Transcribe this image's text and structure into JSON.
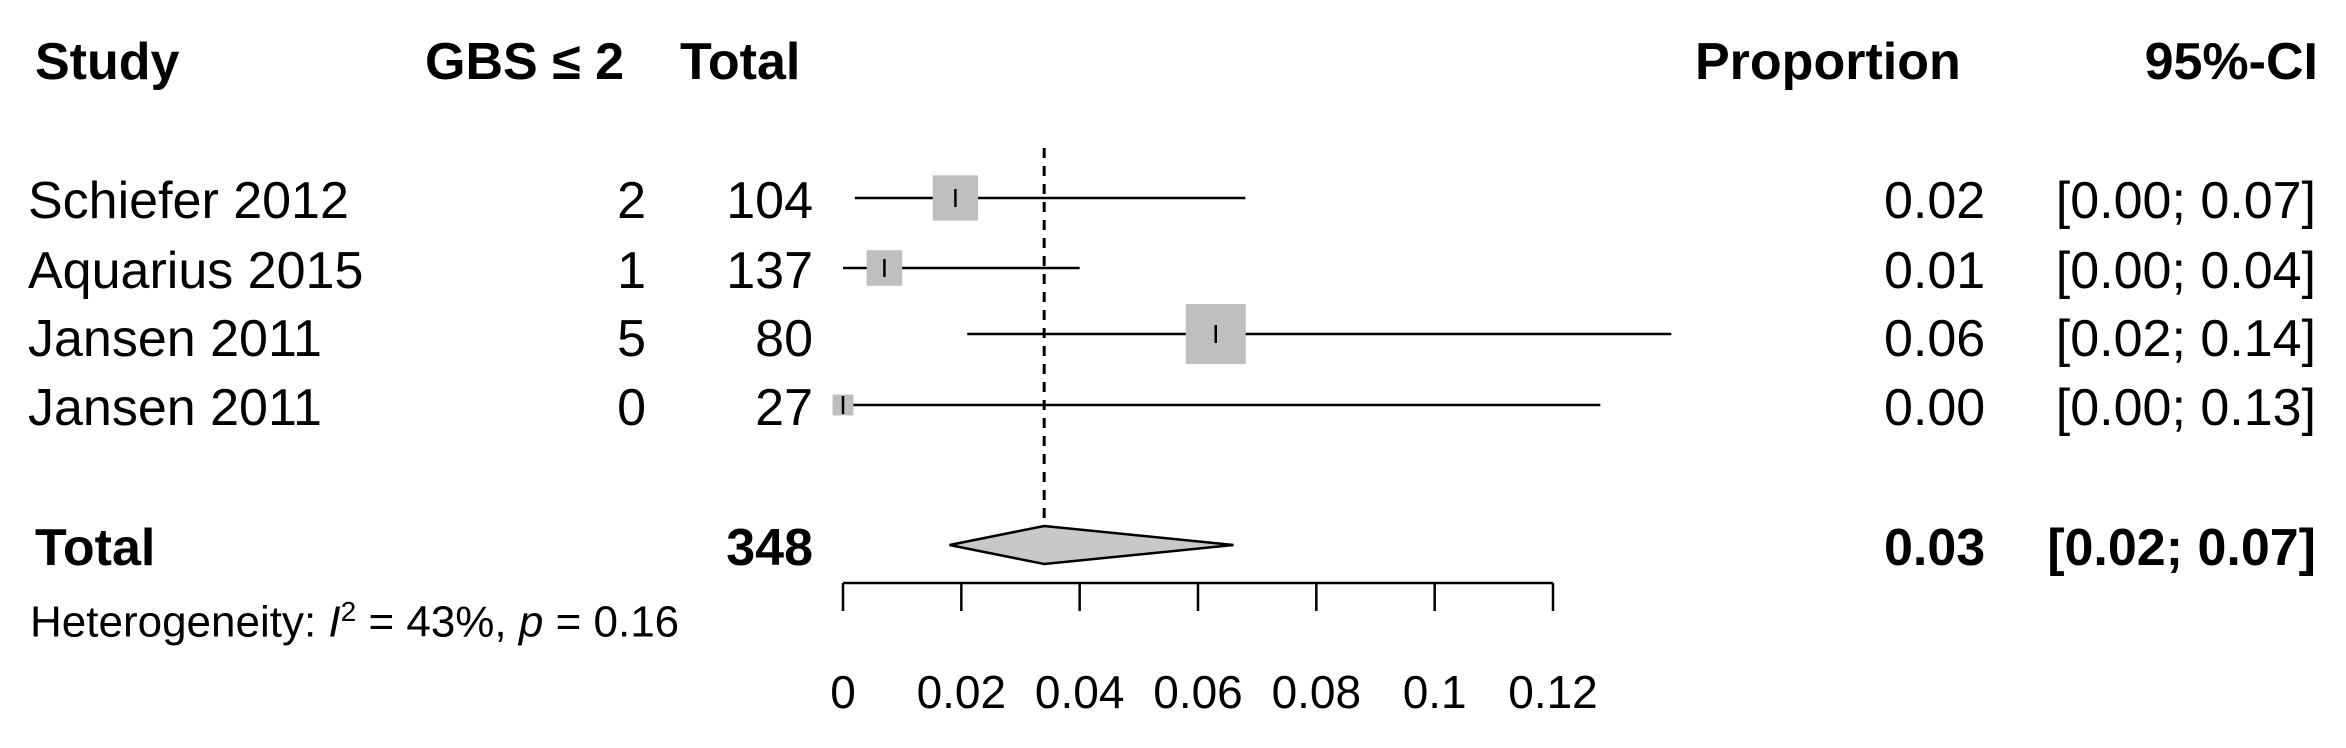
{
  "headers": {
    "study": "Study",
    "events": "GBS ≤ 2",
    "total": "Total",
    "proportion": "Proportion",
    "ci": "95%-CI"
  },
  "rows": [
    {
      "study": "Schiefer 2012",
      "events": "2",
      "total": "104",
      "proportion": "0.02",
      "ci": "[0.00; 0.07]"
    },
    {
      "study": "Aquarius 2015",
      "events": "1",
      "total": "137",
      "proportion": "0.01",
      "ci": "[0.00; 0.04]"
    },
    {
      "study": "Jansen 2011",
      "events": "5",
      "total": "80",
      "proportion": "0.06",
      "ci": "[0.02; 0.14]"
    },
    {
      "study": "Jansen 2011",
      "events": "0",
      "total": "27",
      "proportion": "0.00",
      "ci": "[0.00; 0.13]"
    }
  ],
  "total": {
    "label": "Total",
    "n": "348",
    "proportion": "0.03",
    "ci": "[0.02; 0.07]"
  },
  "heterogeneity": {
    "prefix": "Heterogeneity: ",
    "i_symbol": "I",
    "i_sup": "2",
    "i_value": " = 43%, ",
    "p_symbol": "p",
    "p_value": " = 0.16"
  },
  "chart_data": {
    "type": "forest",
    "x_ticks": [
      0,
      0.02,
      0.04,
      0.06,
      0.08,
      0.1,
      0.12
    ],
    "x_tick_labels": [
      "0",
      "0.02",
      "0.04",
      "0.06",
      "0.08",
      "0.1",
      "0.12"
    ],
    "xlim": [
      0,
      0.12
    ],
    "reference_line": 0.034,
    "studies": [
      {
        "label": "Schiefer 2012",
        "estimate": 0.019,
        "lower": 0.002,
        "upper": 0.068,
        "weight": 0.3
      },
      {
        "label": "Aquarius 2015",
        "estimate": 0.007,
        "lower": 0.0,
        "upper": 0.04,
        "weight": 0.2
      },
      {
        "label": "Jansen 2011",
        "estimate": 0.063,
        "lower": 0.021,
        "upper": 0.14,
        "weight": 0.45
      },
      {
        "label": "Jansen 2011",
        "estimate": 0.0,
        "lower": 0.0,
        "upper": 0.128,
        "weight": 0.05
      }
    ],
    "pooled": {
      "estimate": 0.034,
      "lower": 0.018,
      "upper": 0.066
    }
  },
  "colors": {
    "box": "#bfbfbf",
    "diamond": "#c8c8c8",
    "line": "#000000"
  }
}
